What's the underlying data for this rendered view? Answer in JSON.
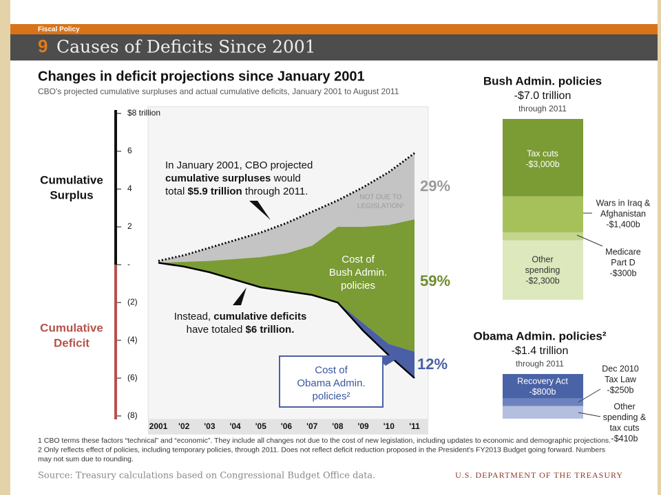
{
  "header": {
    "section": "Fiscal Policy",
    "number": "9",
    "title": "Causes of Deficits Since 2001"
  },
  "chart_data": [
    {
      "type": "area",
      "title": "Changes in deficit projections since January 2001",
      "subtitle": "CBO's projected cumulative surpluses and actual cumulative deficits, January 2001 to August 2011",
      "categories": [
        "2001",
        "'02",
        "'03",
        "'04",
        "'05",
        "'06",
        "'07",
        "'08",
        "'09",
        "'10",
        "'11"
      ],
      "ylim": [
        -8,
        8
      ],
      "yticks": [
        {
          "value": 8,
          "label": "$8 trillion"
        },
        6,
        4,
        2,
        {
          "value": 0,
          "label": "-"
        },
        {
          "value": -2,
          "label": "(2)"
        },
        {
          "value": -4,
          "label": "(4)"
        },
        {
          "value": -6,
          "label": "(6)"
        },
        {
          "value": -8,
          "label": "(8)"
        }
      ],
      "series": [
        {
          "color": "#000000",
          "line": "dotted",
          "values": [
            0.2,
            0.5,
            0.9,
            1.3,
            1.7,
            2.2,
            2.8,
            3.4,
            4.1,
            4.9,
            5.9
          ]
        },
        {
          "color": "#c4c4c4",
          "values": [
            0.1,
            0.15,
            0.2,
            0.3,
            0.4,
            0.6,
            1.0,
            2.0,
            2.0,
            2.1,
            2.4
          ]
        },
        {
          "color": "#7b9b35",
          "values": [
            0.1,
            -0.1,
            -0.4,
            -0.8,
            -1.2,
            -1.4,
            -1.6,
            -2.0,
            -3.1,
            -4.2,
            -4.6
          ]
        },
        {
          "color": "#4a5fa5",
          "line": "solid",
          "values": [
            0.1,
            -0.1,
            -0.4,
            -0.8,
            -1.2,
            -1.4,
            -1.6,
            -2.0,
            -3.5,
            -4.8,
            -6.0
          ]
        }
      ],
      "annotations": {
        "surplus_label": [
          "Cumulative",
          "Surplus"
        ],
        "deficit_label": [
          "Cumulative",
          "Deficit"
        ],
        "projection_note": [
          "In January 2001, CBO projected",
          [
            {
              "text": "cumulative surpluses",
              "bold": true
            },
            {
              "text": " would"
            }
          ],
          [
            {
              "text": "total "
            },
            {
              "text": "$5.9 trillion",
              "bold": true
            },
            {
              "text": " through 2011."
            }
          ]
        ],
        "deficit_note": [
          [
            {
              "text": "Instead, "
            },
            {
              "text": "cumulative deficits",
              "bold": true
            }
          ],
          [
            {
              "text": "have totaled "
            },
            {
              "text": "$6 trillion.",
              "bold": true
            }
          ]
        ],
        "not_legislation": [
          "NOT DUE TO",
          "LEGISLATION¹"
        ],
        "bush_cost": [
          "Cost of",
          "Bush Admin.",
          "policies"
        ],
        "obama_cost": [
          "Cost of",
          "Obama Admin.",
          "policies²"
        ],
        "share_gray": [
          "29%"
        ],
        "share_green": [
          "59%"
        ],
        "share_blue": [
          "12%"
        ]
      }
    },
    {
      "type": "stacked_bar",
      "title": "Bush Admin. policies",
      "subtitle": "-$7.0 trillion",
      "note": "through 2011",
      "categories": [
        [
          "Tax cuts"
        ],
        [
          "Wars in Iraq  &",
          "Afghanistan"
        ],
        [
          "Medicare",
          "Part D"
        ],
        [
          "Other",
          "spending"
        ]
      ],
      "values": [
        -3000,
        -1400,
        -300,
        -2300
      ],
      "value_labels": [
        "-$3,000b",
        "-$1,400b",
        "-$300b",
        "-$2,300b"
      ],
      "colors": [
        "#7b9b35",
        "#a7c15a",
        "#c3d68c",
        "#dde8bd"
      ]
    },
    {
      "type": "stacked_bar",
      "title": "Obama Admin. policies²",
      "subtitle": "-$1.4 trillion",
      "note": "through 2011",
      "categories": [
        [
          "Recovery Act"
        ],
        [
          "Dec 2010",
          "Tax Law"
        ],
        [
          "Other",
          "spending &",
          "tax cuts"
        ]
      ],
      "values": [
        -800,
        -250,
        -410
      ],
      "value_labels": [
        "-$800b",
        "-$250b",
        "-$410b"
      ],
      "colors": [
        "#4a62a6",
        "#6d83c0",
        "#b4bfe0"
      ]
    }
  ],
  "footnotes": [
    "1 CBO terms these factors “technical” and “economic”. They include all changes not due to the cost of new legislation, including updates to economic and demographic projections.",
    "2 Only reflects effect of policies, including temporary policies, through 2011. Does not reflect deficit reduction proposed in the President's FY2013 Budget going forward. Numbers",
    "may not sum due to rounding."
  ],
  "source": "Source: Treasury calculations based on Congressional Budget Office data.",
  "agency": "U.S. DEPARTMENT OF THE TREASURY"
}
